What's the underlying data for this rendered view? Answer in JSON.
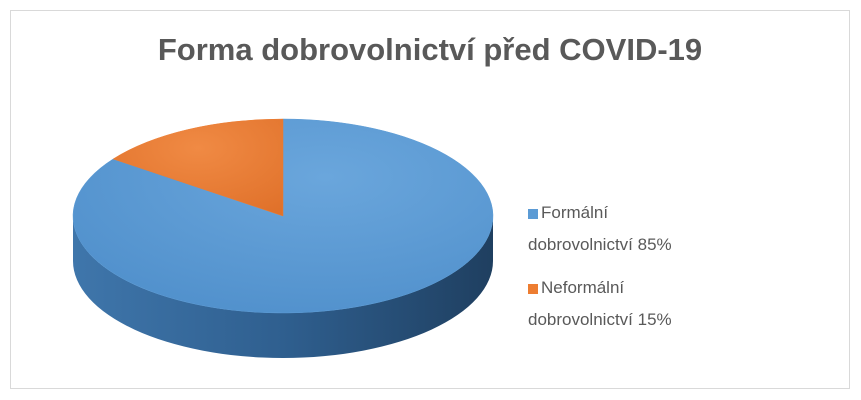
{
  "chart_data": {
    "type": "pie3d",
    "title": "Forma dobrovolnictví před COVID-19",
    "categories": [
      "Formální dobrovolnictví 85%",
      "Neformální dobrovolnictví 15%"
    ],
    "values": [
      85,
      15
    ],
    "colors": [
      "#5b9bd5",
      "#ed7d31"
    ],
    "legend": "right"
  }
}
